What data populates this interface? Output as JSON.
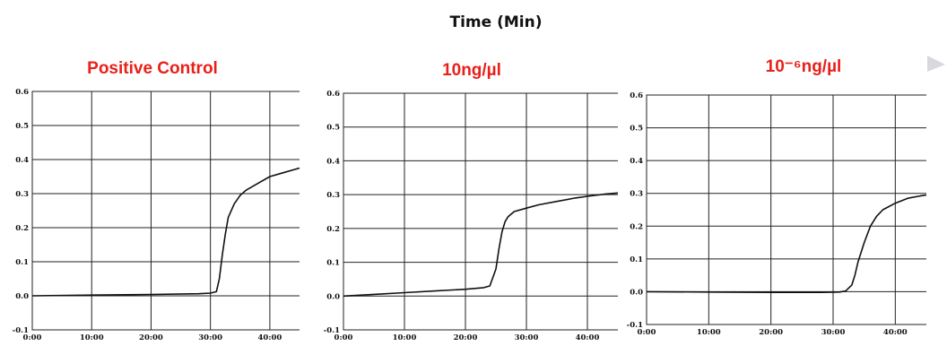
{
  "figure_title": "Time (Min)",
  "chart_data": [
    {
      "type": "line",
      "title": "Positive Control",
      "title_color": "#e8201a",
      "xlim": [
        0,
        45
      ],
      "ylim": [
        -0.1,
        0.6
      ],
      "x_ticks": [
        "0:00",
        "10:00",
        "20:00",
        "30:00",
        "40:00"
      ],
      "y_ticks": [
        "-0.1",
        "0.0",
        "0.1",
        "0.2",
        "0.3",
        "0.4",
        "0.5",
        "0.6"
      ],
      "grid": true,
      "series": [
        {
          "x": [
            0,
            10,
            20,
            28,
            30,
            31,
            31.5,
            32,
            32.5,
            33,
            34,
            35,
            36,
            38,
            40,
            42,
            45
          ],
          "y": [
            0.0,
            0.002,
            0.004,
            0.006,
            0.008,
            0.012,
            0.05,
            0.12,
            0.18,
            0.23,
            0.27,
            0.295,
            0.31,
            0.33,
            0.35,
            0.36,
            0.375
          ]
        }
      ]
    },
    {
      "type": "line",
      "title": "10ng/µl",
      "title_color": "#e8201a",
      "xlim": [
        0,
        45
      ],
      "ylim": [
        -0.1,
        0.6
      ],
      "x_ticks": [
        "0:00",
        "10:00",
        "20:00",
        "30:00",
        "40:00"
      ],
      "y_ticks": [
        "-0.1",
        "0.0",
        "0.1",
        "0.2",
        "0.3",
        "0.4",
        "0.5",
        "0.6"
      ],
      "grid": true,
      "series": [
        {
          "x": [
            0,
            5,
            10,
            15,
            20,
            23,
            24,
            25,
            25.5,
            26,
            26.5,
            27,
            28,
            30,
            32,
            35,
            38,
            40,
            43,
            45
          ],
          "y": [
            0.0,
            0.005,
            0.01,
            0.015,
            0.02,
            0.025,
            0.03,
            0.08,
            0.14,
            0.19,
            0.22,
            0.235,
            0.25,
            0.26,
            0.27,
            0.28,
            0.29,
            0.295,
            0.302,
            0.305
          ]
        }
      ]
    },
    {
      "type": "line",
      "title": "10⁻⁶ng/µl",
      "title_color": "#e8201a",
      "xlim": [
        0,
        45
      ],
      "ylim": [
        -0.1,
        0.6
      ],
      "x_ticks": [
        "0:00",
        "10:00",
        "20:00",
        "30:00",
        "40:00"
      ],
      "y_ticks": [
        "-0.1",
        "0.0",
        "0.1",
        "0.2",
        "0.3",
        "0.4",
        "0.5",
        "0.6"
      ],
      "grid": true,
      "series": [
        {
          "x": [
            0,
            10,
            20,
            28,
            31,
            32,
            33,
            33.5,
            34,
            35,
            36,
            37,
            38,
            40,
            42,
            44,
            45
          ],
          "y": [
            0.0,
            -0.001,
            -0.002,
            -0.002,
            -0.001,
            0.002,
            0.02,
            0.05,
            0.09,
            0.15,
            0.2,
            0.23,
            0.25,
            0.27,
            0.285,
            0.292,
            0.295
          ]
        }
      ]
    }
  ]
}
